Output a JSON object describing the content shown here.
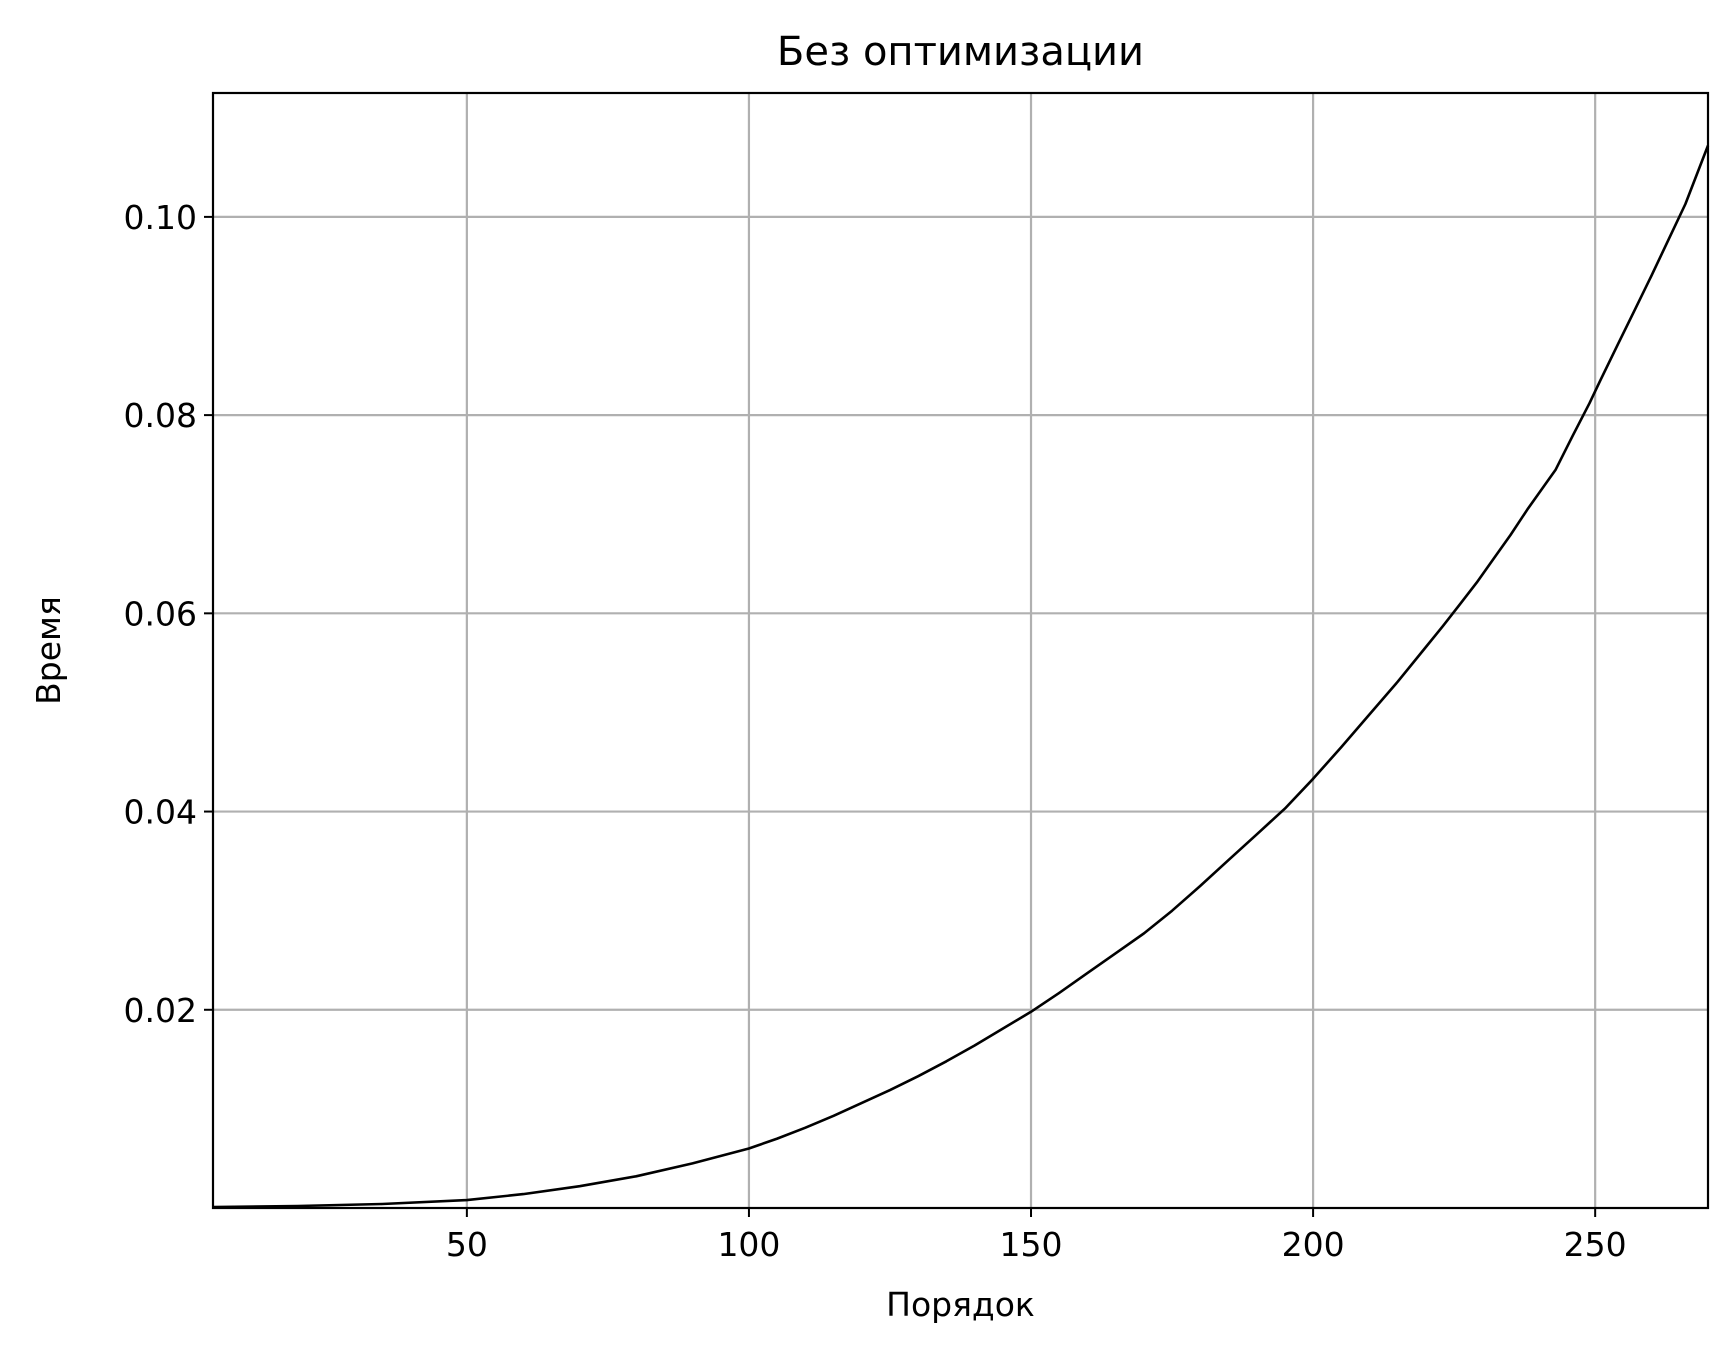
{
  "chart_data": {
    "type": "line",
    "title": "Без оптимизации",
    "xlabel": "Порядок",
    "ylabel": "Время",
    "xlim": [
      5,
      270
    ],
    "ylim": [
      0,
      0.1125
    ],
    "xticks": [
      50,
      100,
      150,
      200,
      250
    ],
    "xtick_labels": [
      "50",
      "100",
      "150",
      "200",
      "250"
    ],
    "yticks": [
      0.02,
      0.04,
      0.06,
      0.08,
      0.1
    ],
    "ytick_labels": [
      "0.02",
      "0.04",
      "0.06",
      "0.08",
      "0.10"
    ],
    "grid": true,
    "legend": false,
    "series": [
      {
        "color": "#000000",
        "x": [
          5,
          20,
          35,
          50,
          60,
          70,
          80,
          90,
          100,
          105,
          110,
          115,
          120,
          125,
          130,
          135,
          140,
          145,
          150,
          155,
          160,
          165,
          170,
          175,
          180,
          185,
          190,
          195,
          200,
          205,
          210,
          215,
          220,
          223,
          226,
          229,
          232,
          235,
          238,
          240,
          241,
          243,
          246,
          249,
          251,
          254,
          257,
          260,
          263,
          266,
          270
        ],
        "y": [
          0.0001,
          0.0002,
          0.0004,
          0.0008,
          0.0014,
          0.0022,
          0.0032,
          0.0045,
          0.006,
          0.007,
          0.0081,
          0.0093,
          0.0106,
          0.0119,
          0.0133,
          0.0148,
          0.0164,
          0.0181,
          0.0198,
          0.0217,
          0.0237,
          0.0257,
          0.0277,
          0.03,
          0.0325,
          0.0351,
          0.0377,
          0.0403,
          0.0433,
          0.0465,
          0.0498,
          0.0531,
          0.0566,
          0.0587,
          0.0609,
          0.0631,
          0.0655,
          0.0679,
          0.0705,
          0.0721,
          0.0729,
          0.0745,
          0.0779,
          0.0812,
          0.0836,
          0.0871,
          0.0906,
          0.0941,
          0.0977,
          0.1013,
          0.1072
        ]
      }
    ]
  }
}
